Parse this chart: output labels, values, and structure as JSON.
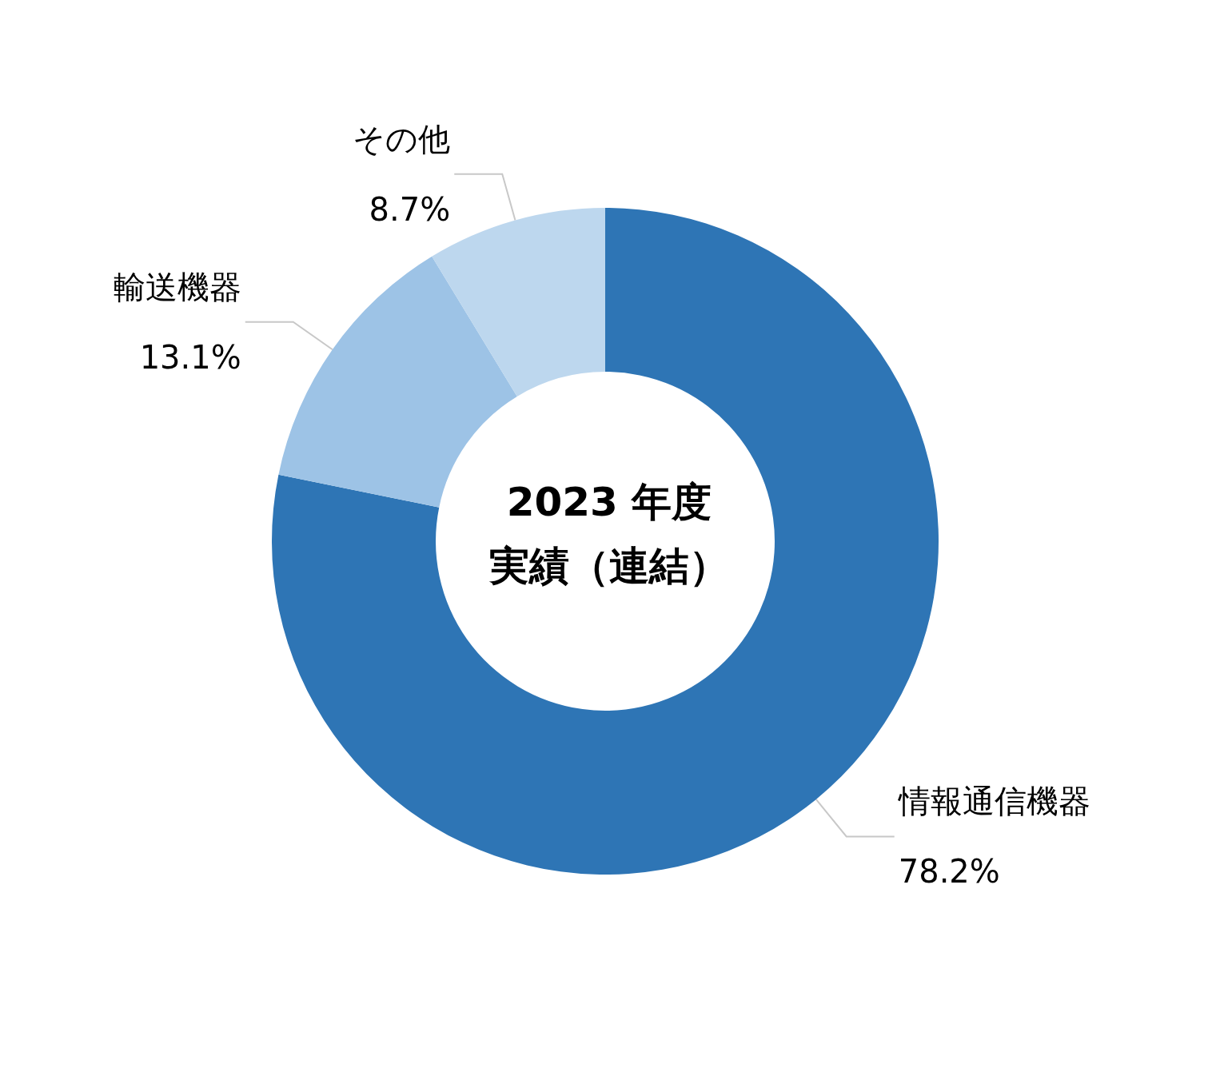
{
  "chart_data": {
    "type": "donut",
    "title": "2023 年度",
    "subtitle": "実績（連結）",
    "categories": [
      "情報通信機器",
      "輸送機器",
      "その他"
    ],
    "values": [
      78.2,
      13.1,
      8.7
    ],
    "colors": [
      "#2e75b5",
      "#9dc3e6",
      "#bdd7ee"
    ],
    "value_labels": [
      "78.2%",
      "13.1%",
      "8.7%"
    ]
  }
}
